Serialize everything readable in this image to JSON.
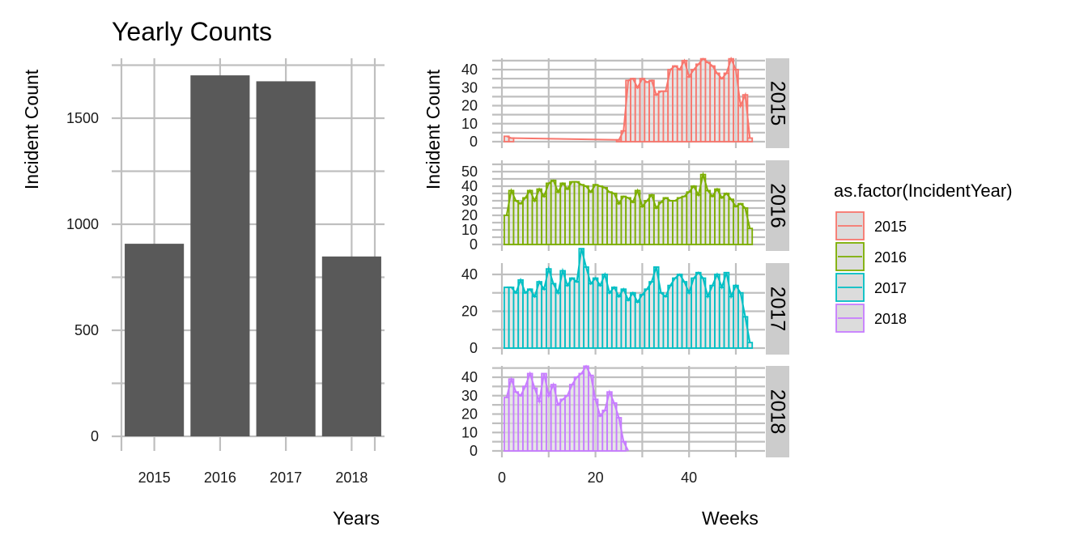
{
  "chart_data": [
    {
      "type": "bar",
      "title": "Yearly Counts",
      "xlabel": "Years",
      "ylabel": "Incident Count",
      "categories": [
        "2015",
        "2016",
        "2017",
        "2018"
      ],
      "values": [
        908,
        1702,
        1674,
        848
      ],
      "ylim": [
        0,
        1800
      ],
      "yticks": [
        0,
        500,
        1000,
        1500
      ],
      "grid": true,
      "bar_color": "#595959"
    },
    {
      "type": "bar",
      "title": "",
      "xlabel": "Weeks",
      "ylabel": "Incident Count",
      "facet_by": "IncidentYear",
      "xlim": [
        0,
        56
      ],
      "xticks": [
        0,
        20,
        40
      ],
      "grid": true,
      "fill": "#dcdcdc",
      "legend": {
        "title": "as.factor(IncidentYear)",
        "position": "right",
        "entries": [
          {
            "label": "2015",
            "color": "#F8766D"
          },
          {
            "label": "2016",
            "color": "#7CAE00"
          },
          {
            "label": "2017",
            "color": "#00BFC4"
          },
          {
            "label": "2018",
            "color": "#C77CFF"
          }
        ]
      },
      "panels": [
        {
          "strip": "2015",
          "color": "#F8766D",
          "ylim": [
            0,
            48
          ],
          "yticks": [
            0,
            10,
            20,
            30,
            40
          ],
          "weeks": [
            1,
            2,
            25,
            26,
            27,
            28,
            29,
            30,
            31,
            32,
            33,
            34,
            35,
            36,
            37,
            38,
            39,
            40,
            41,
            42,
            43,
            44,
            45,
            46,
            47,
            48,
            49,
            50,
            51,
            52,
            53
          ],
          "values": [
            3,
            2,
            1,
            6,
            34,
            35,
            30,
            35,
            33,
            34,
            26,
            28,
            28,
            40,
            42,
            40,
            45,
            36,
            40,
            43,
            46,
            44,
            42,
            38,
            35,
            38,
            46,
            40,
            20,
            26,
            2
          ]
        },
        {
          "strip": "2016",
          "color": "#7CAE00",
          "ylim": [
            0,
            50
          ],
          "yticks": [
            0,
            10,
            20,
            30,
            40,
            50
          ],
          "weeks": [
            1,
            2,
            3,
            4,
            5,
            6,
            7,
            8,
            9,
            10,
            11,
            12,
            13,
            14,
            15,
            16,
            17,
            18,
            19,
            20,
            21,
            22,
            23,
            24,
            25,
            26,
            27,
            28,
            29,
            30,
            31,
            32,
            33,
            34,
            35,
            36,
            37,
            38,
            39,
            40,
            41,
            42,
            43,
            44,
            45,
            46,
            47,
            48,
            49,
            50,
            51,
            52,
            53
          ],
          "values": [
            20,
            37,
            30,
            28,
            32,
            37,
            30,
            38,
            33,
            42,
            44,
            36,
            42,
            38,
            43,
            43,
            41,
            40,
            36,
            41,
            40,
            39,
            36,
            35,
            28,
            33,
            32,
            29,
            37,
            26,
            30,
            34,
            25,
            29,
            32,
            30,
            30,
            32,
            33,
            36,
            40,
            34,
            48,
            37,
            33,
            38,
            32,
            35,
            31,
            26,
            28,
            25,
            11
          ]
        },
        {
          "strip": "2017",
          "color": "#00BFC4",
          "ylim": [
            0,
            56
          ],
          "yticks": [
            0,
            20,
            40
          ],
          "weeks": [
            1,
            2,
            3,
            4,
            5,
            6,
            7,
            8,
            9,
            10,
            11,
            12,
            13,
            14,
            15,
            16,
            17,
            18,
            19,
            20,
            21,
            22,
            23,
            24,
            25,
            26,
            27,
            28,
            29,
            30,
            31,
            32,
            33,
            34,
            35,
            36,
            37,
            38,
            39,
            40,
            41,
            42,
            43,
            44,
            45,
            46,
            47,
            48,
            49,
            50,
            51,
            52,
            53
          ],
          "values": [
            33,
            33,
            30,
            37,
            30,
            32,
            28,
            36,
            32,
            43,
            35,
            30,
            42,
            34,
            38,
            36,
            54,
            44,
            35,
            38,
            34,
            40,
            30,
            33,
            28,
            32,
            26,
            30,
            25,
            29,
            32,
            36,
            44,
            30,
            28,
            34,
            38,
            40,
            36,
            30,
            38,
            41,
            38,
            28,
            34,
            40,
            33,
            41,
            28,
            34,
            30,
            17,
            3
          ]
        },
        {
          "strip": "2018",
          "color": "#C77CFF",
          "ylim": [
            0,
            48
          ],
          "yticks": [
            0,
            10,
            20,
            30,
            40
          ],
          "weeks": [
            1,
            2,
            3,
            4,
            5,
            6,
            7,
            8,
            9,
            10,
            11,
            12,
            13,
            14,
            15,
            16,
            17,
            18,
            19,
            20,
            21,
            22,
            23,
            24,
            25,
            26,
            27
          ],
          "values": [
            29,
            39,
            32,
            30,
            35,
            42,
            34,
            27,
            42,
            30,
            36,
            25,
            28,
            30,
            36,
            40,
            42,
            46,
            41,
            28,
            19,
            22,
            32,
            26,
            18,
            5,
            0
          ]
        }
      ]
    }
  ]
}
